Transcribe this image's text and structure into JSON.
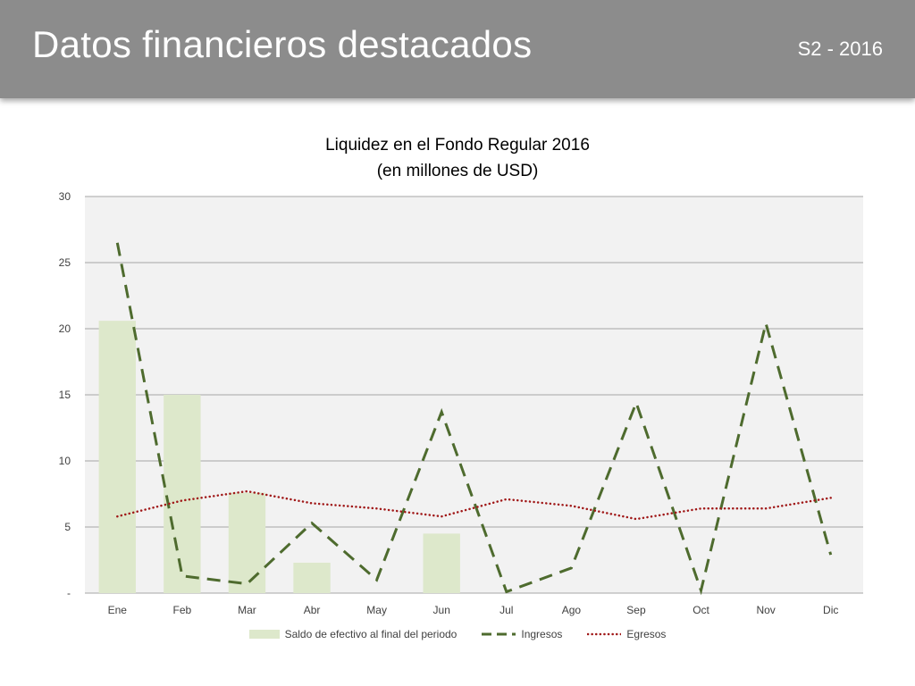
{
  "header": {
    "title": "Datos financieros destacados",
    "period": "S2 - 2016"
  },
  "colors": {
    "header_bg": "#8c8c8c",
    "plot_bg": "#f2f2f2",
    "bar": "#dde8cb",
    "ingresos": "#4e6b2e",
    "egresos": "#a01818",
    "grid": "#a6a6a6"
  },
  "chart_data": {
    "type": "bar",
    "title_line1": "Liquidez en el Fondo Regular 2016",
    "title_line2": "(en millones de USD)",
    "categories": [
      "Ene",
      "Feb",
      "Mar",
      "Abr",
      "May",
      "Jun",
      "Jul",
      "Ago",
      "Sep",
      "Oct",
      "Nov",
      "Dic"
    ],
    "ylim": [
      0,
      30
    ],
    "yticks": [
      {
        "value": 0,
        "label": "-"
      },
      {
        "value": 5,
        "label": "5"
      },
      {
        "value": 10,
        "label": "10"
      },
      {
        "value": 15,
        "label": "15"
      },
      {
        "value": 20,
        "label": "20"
      },
      {
        "value": 25,
        "label": "25"
      },
      {
        "value": 30,
        "label": "30"
      }
    ],
    "grid": true,
    "legend_position": "bottom",
    "series": [
      {
        "name": "Saldo de efectivo al final del periodo",
        "type": "bar",
        "values": [
          20.6,
          15.0,
          7.6,
          2.3,
          0,
          4.5,
          0,
          0,
          0,
          0,
          0,
          0
        ]
      },
      {
        "name": "Ingresos",
        "type": "line",
        "style": "dashed",
        "values": [
          26.5,
          1.3,
          0.7,
          5.3,
          1.0,
          13.7,
          0.1,
          1.9,
          14.4,
          0.2,
          20.4,
          2.9
        ]
      },
      {
        "name": "Egresos",
        "type": "line",
        "style": "dotted",
        "values": [
          5.8,
          7.0,
          7.7,
          6.8,
          6.4,
          5.8,
          7.1,
          6.6,
          5.6,
          6.4,
          6.4,
          7.2
        ]
      }
    ]
  }
}
